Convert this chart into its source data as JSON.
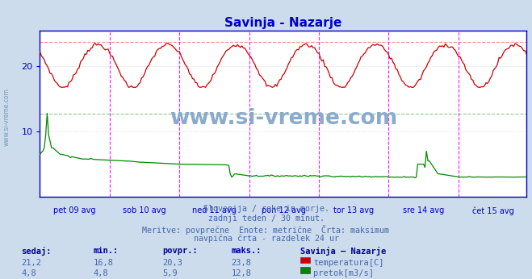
{
  "title": "Savinja - Nazarje",
  "title_color": "#0000cc",
  "bg_color": "#ccdcec",
  "plot_bg_color": "#ffffff",
  "grid_color": "#cccccc",
  "axis_color": "#0000bb",
  "x_tick_labels": [
    "pet 09 avg",
    "sob 10 avg",
    "ned 11 avg",
    "pon 12 avg",
    "tor 13 avg",
    "sre 14 avg",
    "čet 15 avg"
  ],
  "n_days": 7,
  "n_points": 336,
  "temp_color": "#cc0000",
  "flow_color": "#008800",
  "temp_max_line_color": "#ff8888",
  "flow_max_line_color": "#88cc88",
  "vline_color": "#ff00ff",
  "temp_min": 16.8,
  "temp_max": 23.8,
  "temp_avg": 20.3,
  "temp_current": 21.2,
  "flow_min": 4.8,
  "flow_max": 12.8,
  "flow_avg": 5.9,
  "flow_current": 4.8,
  "ylim_max": 25.5,
  "yticks": [
    10,
    20
  ],
  "footer_line1": "Slovenija / reke in morje.",
  "footer_line2": "zadnji teden / 30 minut.",
  "footer_line3": "Meritve: povprečne  Enote: metrične  Črta: maksimum",
  "footer_line4": "navpična črta - razdelek 24 ur",
  "legend_title": "Savinja – Nazarje",
  "label_temp": "temperatura[C]",
  "label_flow": "pretok[m3/s]",
  "footer_color": "#4466aa",
  "legend_color": "#000099",
  "stats_color": "#4466aa",
  "watermark_color": "#8aabcc",
  "left_watermark_color": "#7090b0",
  "stats_header": [
    "sedaj:",
    "min.:",
    "povpr.:",
    "maks.:"
  ],
  "stats_temp": [
    "21,2",
    "16,8",
    "20,3",
    "23,8"
  ],
  "stats_flow": [
    "4,8",
    "4,8",
    "5,9",
    "12,8"
  ]
}
